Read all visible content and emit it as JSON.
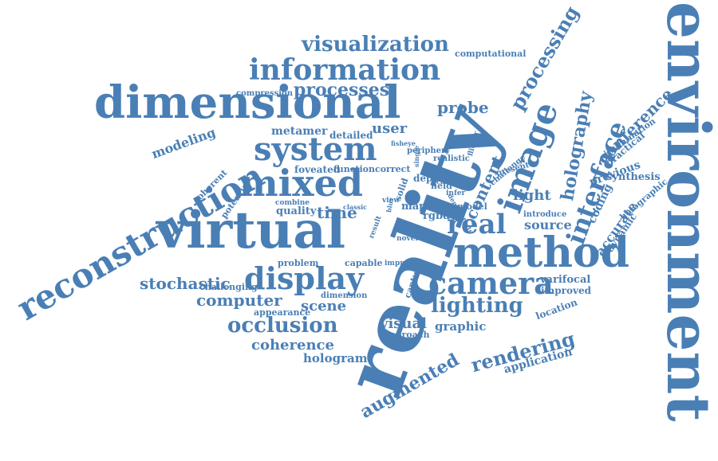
{
  "color": "#4a7fb5",
  "words": [
    {
      "text": "environment",
      "name": "word-environment"
    },
    {
      "text": "reality",
      "name": "word-reality"
    },
    {
      "text": "virtual",
      "name": "word-virtual"
    },
    {
      "text": "dimensional",
      "name": "word-dimensional"
    },
    {
      "text": "reconstruction",
      "name": "word-reconstruction"
    },
    {
      "text": "method",
      "name": "word-method"
    },
    {
      "text": "mixed",
      "name": "word-mixed"
    },
    {
      "text": "system",
      "name": "word-system"
    },
    {
      "text": "information",
      "name": "word-information"
    },
    {
      "text": "image",
      "name": "word-image"
    },
    {
      "text": "display",
      "name": "word-display"
    },
    {
      "text": "camera",
      "name": "word-camera"
    },
    {
      "text": "real",
      "name": "word-real"
    },
    {
      "text": "interface",
      "name": "word-interface"
    },
    {
      "text": "visualization",
      "name": "word-visualization"
    },
    {
      "text": "processes",
      "name": "word-processes"
    },
    {
      "text": "processing",
      "name": "word-processing"
    },
    {
      "text": "holography",
      "name": "word-holography"
    },
    {
      "text": "conference",
      "name": "word-conference"
    },
    {
      "text": "occlusion",
      "name": "word-occlusion"
    },
    {
      "text": "lighting",
      "name": "word-lighting"
    },
    {
      "text": "rendering",
      "name": "word-rendering"
    },
    {
      "text": "augmented",
      "name": "word-augmented"
    },
    {
      "text": "stochastic",
      "name": "word-stochastic"
    },
    {
      "text": "computer",
      "name": "word-computer"
    },
    {
      "text": "coherence",
      "name": "word-coherence"
    },
    {
      "text": "scene",
      "name": "word-scene"
    },
    {
      "text": "hologram",
      "name": "word-hologram"
    },
    {
      "text": "application",
      "name": "word-application"
    },
    {
      "text": "content",
      "name": "word-content"
    },
    {
      "text": "probe",
      "name": "word-probe"
    },
    {
      "text": "time",
      "name": "word-time"
    },
    {
      "text": "light",
      "name": "word-light"
    },
    {
      "text": "source",
      "name": "word-source"
    },
    {
      "text": "visual",
      "name": "word-visual"
    },
    {
      "text": "graphic",
      "name": "word-graphic"
    },
    {
      "text": "modeling",
      "name": "word-modeling"
    },
    {
      "text": "user",
      "name": "word-user"
    },
    {
      "text": "metamer",
      "name": "word-metamer"
    },
    {
      "text": "accurate",
      "name": "word-accurate"
    },
    {
      "text": "coding",
      "name": "word-coding"
    },
    {
      "text": "previous",
      "name": "word-previous"
    },
    {
      "text": "synthesis",
      "name": "word-synthesis"
    },
    {
      "text": "practical",
      "name": "word-practical"
    },
    {
      "text": "dynamic",
      "name": "word-dynamic"
    },
    {
      "text": "holographic",
      "name": "word-holographic"
    },
    {
      "text": "illumination",
      "name": "word-illumination"
    },
    {
      "text": "varifocal",
      "name": "word-varifocal"
    },
    {
      "text": "improved",
      "name": "word-improved"
    },
    {
      "text": "location",
      "name": "word-location"
    },
    {
      "text": "computational",
      "name": "word-computational"
    },
    {
      "text": "compression",
      "name": "word-compression"
    },
    {
      "text": "detailed",
      "name": "word-detailed"
    },
    {
      "text": "quality",
      "name": "word-quality"
    },
    {
      "text": "foveated",
      "name": "word-foveated"
    },
    {
      "text": "function",
      "name": "word-function"
    },
    {
      "text": "correct",
      "name": "word-correct"
    },
    {
      "text": "coherent",
      "name": "word-coherent"
    },
    {
      "text": "potential",
      "name": "word-potential"
    },
    {
      "text": "challenging",
      "name": "word-challenging"
    },
    {
      "text": "problem",
      "name": "word-problem"
    },
    {
      "text": "appearance",
      "name": "word-appearance"
    },
    {
      "text": "dimension",
      "name": "word-dimension"
    },
    {
      "text": "approach",
      "name": "word-approach"
    },
    {
      "text": "capable",
      "name": "word-capable"
    },
    {
      "text": "rgbd",
      "name": "word-rgbd"
    },
    {
      "text": "map",
      "name": "word-map"
    },
    {
      "text": "depth",
      "name": "word-depth"
    },
    {
      "text": "field",
      "name": "word-field"
    },
    {
      "text": "model",
      "name": "word-model"
    },
    {
      "text": "introduce",
      "name": "word-introduce"
    },
    {
      "text": "challenge",
      "name": "word-challenge"
    },
    {
      "text": "present",
      "name": "word-present"
    },
    {
      "text": "periphery",
      "name": "word-periphery"
    },
    {
      "text": "realistic",
      "name": "word-realistic"
    },
    {
      "text": "combine",
      "name": "word-combine"
    },
    {
      "text": "result",
      "name": "word-result"
    },
    {
      "text": "capture",
      "name": "word-capture"
    },
    {
      "text": "improve",
      "name": "word-improve"
    },
    {
      "text": "novel",
      "name": "word-novel"
    },
    {
      "text": "solid",
      "name": "word-solid"
    },
    {
      "text": "infer",
      "name": "word-infer"
    },
    {
      "text": "single",
      "name": "word-single"
    },
    {
      "text": "fisheye",
      "name": "word-fisheye"
    },
    {
      "text": "flicker",
      "name": "word-flicker"
    },
    {
      "text": "change",
      "name": "word-change"
    },
    {
      "text": "view",
      "name": "word-view"
    },
    {
      "text": "blur",
      "name": "word-blur"
    },
    {
      "text": "classic",
      "name": "word-classic"
    },
    {
      "text": "demonstrate",
      "name": "word-demonstrate"
    }
  ]
}
